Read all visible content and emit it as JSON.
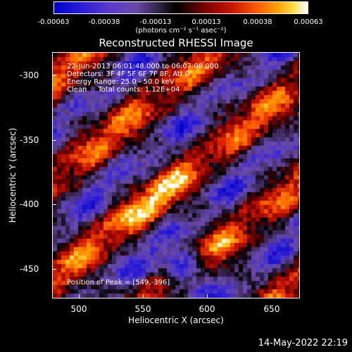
{
  "colorbar": {
    "ticks": [
      "-0.00063",
      "-0.00038",
      "-0.00013",
      "0.00013",
      "0.00038",
      "0.00063"
    ],
    "units": "(photons cm⁻² s⁻¹ asec⁻²)"
  },
  "plot": {
    "title": "Reconstructed RHESSI Image",
    "annotation": {
      "line1": "22-Jun-2013 06:01:48.000 to 06:07:08.000",
      "line2": "Detectors: 3F 4F 5F 6F 7F 8F, Att 0",
      "line3": "Energy Range: 25.0 - 50.0 keV",
      "line4": "Clean     Total counts: 1.12E+04"
    },
    "peak_text": "Position of Peak = [549,-396]",
    "x_axis": {
      "label": "Heliocentric X (arcsec)",
      "ticks": [
        "500",
        "550",
        "600",
        "650"
      ]
    },
    "y_axis": {
      "label": "Heliocentric Y (arcsec)",
      "ticks": [
        "-300",
        "-350",
        "-400",
        "-450"
      ]
    }
  },
  "footer": {
    "date": "14-May-2022 22:19"
  }
}
